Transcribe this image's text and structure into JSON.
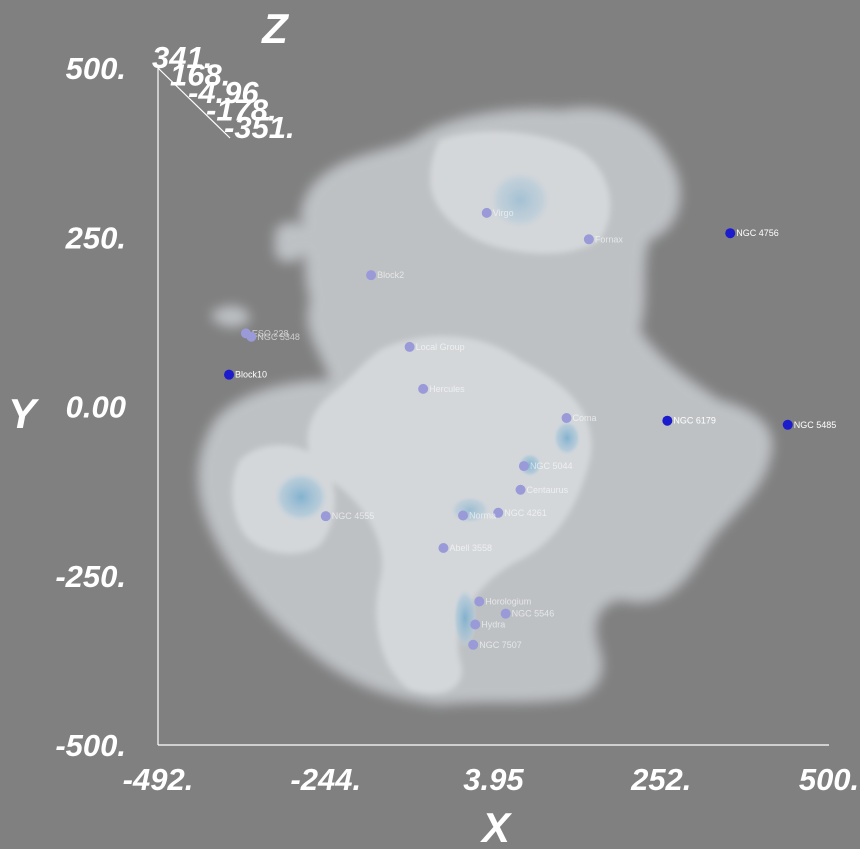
{
  "chart_data": {
    "type": "scatter",
    "title": "",
    "xlabel": "X",
    "ylabel": "Y",
    "zlabel": "Z",
    "xlim": [
      -492,
      500
    ],
    "ylim": [
      -500,
      500
    ],
    "x_ticks": [
      -492,
      -244,
      3.95,
      252,
      500
    ],
    "x_tick_labels": [
      "-492.",
      "-244.",
      "3.95",
      "252.",
      "500."
    ],
    "y_ticks": [
      -500,
      -250,
      0,
      250,
      500
    ],
    "y_tick_labels": [
      "-500.",
      "-250.",
      "0.00",
      "250.",
      "500."
    ],
    "z_ticks": [
      341,
      168,
      -4.96,
      -178,
      -351
    ],
    "z_tick_labels": [
      "341.",
      "168.",
      "-4.96",
      "-178.",
      "-351."
    ],
    "grid": false,
    "background_color": "#808080",
    "density_color": "#d8dde2",
    "core_color": "#8fb4cc",
    "point_color": "#1c1ccc",
    "points": [
      {
        "label": "Block2",
        "x": -177,
        "y": 194,
        "z": 0
      },
      {
        "label": "ESO 228",
        "x": -362,
        "y": 108,
        "z": 0
      },
      {
        "label": "NGC 5348",
        "x": -354,
        "y": 103,
        "z": 0
      },
      {
        "label": "Block10",
        "x": -387,
        "y": 47,
        "z": 0
      },
      {
        "label": "NGC 6179",
        "x": 261,
        "y": -21,
        "z": 0
      },
      {
        "label": "NGC 4756",
        "x": 354,
        "y": 256,
        "z": 0
      },
      {
        "label": "NGC 5485",
        "x": 439,
        "y": -27,
        "z": 0
      },
      {
        "label": "Virgo",
        "x": -6,
        "y": 286,
        "z": 0
      },
      {
        "label": "Fornax",
        "x": 145,
        "y": 247,
        "z": 0
      },
      {
        "label": "Local Group",
        "x": -120,
        "y": 88,
        "z": 0
      },
      {
        "label": "Hercules",
        "x": -100,
        "y": 26,
        "z": 0
      },
      {
        "label": "Coma",
        "x": 112,
        "y": -17,
        "z": 0
      },
      {
        "label": "NGC 5044",
        "x": 49,
        "y": -88,
        "z": 0
      },
      {
        "label": "Centaurus",
        "x": 44,
        "y": -123,
        "z": 0
      },
      {
        "label": "NGC 4261",
        "x": 11,
        "y": -157,
        "z": 0
      },
      {
        "label": "Norma",
        "x": -41,
        "y": -161,
        "z": 0
      },
      {
        "label": "NGC 4555",
        "x": -244,
        "y": -162,
        "z": 0
      },
      {
        "label": "Abell 3558",
        "x": -70,
        "y": -209,
        "z": 0
      },
      {
        "label": "Horologium",
        "x": -17,
        "y": -288,
        "z": 0
      },
      {
        "label": "NGC 5546",
        "x": 22,
        "y": -306,
        "z": 0
      },
      {
        "label": "Hydra",
        "x": -23,
        "y": -322,
        "z": 0
      },
      {
        "label": "NGC 7507",
        "x": -26,
        "y": -352,
        "z": 0
      }
    ]
  }
}
